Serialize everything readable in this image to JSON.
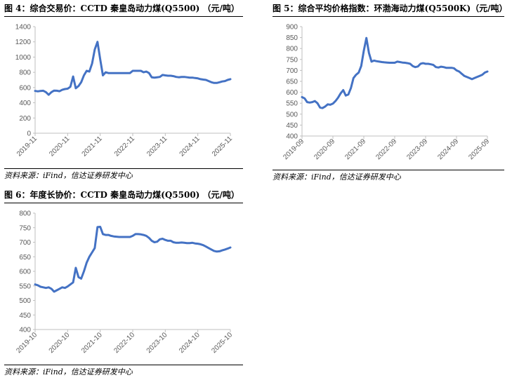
{
  "chart_data": [
    {
      "type": "line",
      "title": "图 4：综合交易价：CCTD 秦皇岛动力煤(Q5500)  （元/吨）",
      "source": "资料来源：iFind，信达证券研发中心",
      "x_tick_labels": [
        "2019-11",
        "2020-11",
        "2021-11",
        "2022-11",
        "2023-11",
        "2024-11",
        "2025-11"
      ],
      "ylim": [
        0,
        1400
      ],
      "y_ticks": [
        0,
        200,
        400,
        600,
        800,
        1000,
        1200,
        1400
      ],
      "xlim": [
        "2019-11",
        "2025-11"
      ],
      "grid": false,
      "series": [
        {
          "color": "#4472c4",
          "points": [
            [
              "2019-11",
              555
            ],
            [
              "2019-12",
              550
            ],
            [
              "2020-01",
              555
            ],
            [
              "2020-02",
              558
            ],
            [
              "2020-03",
              540
            ],
            [
              "2020-04",
              505
            ],
            [
              "2020-05",
              540
            ],
            [
              "2020-06",
              560
            ],
            [
              "2020-07",
              558
            ],
            [
              "2020-08",
              552
            ],
            [
              "2020-09",
              570
            ],
            [
              "2020-10",
              580
            ],
            [
              "2020-11",
              585
            ],
            [
              "2020-12",
              610
            ],
            [
              "2021-01",
              745
            ],
            [
              "2021-02",
              590
            ],
            [
              "2021-03",
              620
            ],
            [
              "2021-04",
              670
            ],
            [
              "2021-05",
              760
            ],
            [
              "2021-06",
              820
            ],
            [
              "2021-07",
              810
            ],
            [
              "2021-08",
              915
            ],
            [
              "2021-09",
              1100
            ],
            [
              "2021-10",
              1200
            ],
            [
              "2021-11",
              970
            ],
            [
              "2021-12",
              760
            ],
            [
              "2022-01",
              800
            ],
            [
              "2022-02",
              790
            ],
            [
              "2022-03",
              790
            ],
            [
              "2022-04",
              790
            ],
            [
              "2022-05",
              790
            ],
            [
              "2022-06",
              790
            ],
            [
              "2022-07",
              790
            ],
            [
              "2022-08",
              790
            ],
            [
              "2022-09",
              790
            ],
            [
              "2022-10",
              790
            ],
            [
              "2022-11",
              820
            ],
            [
              "2022-12",
              820
            ],
            [
              "2023-01",
              820
            ],
            [
              "2023-02",
              820
            ],
            [
              "2023-03",
              800
            ],
            [
              "2023-04",
              810
            ],
            [
              "2023-05",
              790
            ],
            [
              "2023-06",
              735
            ],
            [
              "2023-07",
              730
            ],
            [
              "2023-08",
              735
            ],
            [
              "2023-09",
              740
            ],
            [
              "2023-10",
              765
            ],
            [
              "2023-11",
              760
            ],
            [
              "2023-12",
              755
            ],
            [
              "2024-01",
              755
            ],
            [
              "2024-02",
              750
            ],
            [
              "2024-03",
              740
            ],
            [
              "2024-04",
              735
            ],
            [
              "2024-05",
              740
            ],
            [
              "2024-06",
              740
            ],
            [
              "2024-07",
              735
            ],
            [
              "2024-08",
              730
            ],
            [
              "2024-09",
              730
            ],
            [
              "2024-10",
              725
            ],
            [
              "2024-11",
              720
            ],
            [
              "2024-12",
              710
            ],
            [
              "2025-01",
              705
            ],
            [
              "2025-02",
              700
            ],
            [
              "2025-03",
              685
            ],
            [
              "2025-04",
              670
            ],
            [
              "2025-05",
              660
            ],
            [
              "2025-06",
              660
            ],
            [
              "2025-07",
              670
            ],
            [
              "2025-08",
              680
            ],
            [
              "2025-09",
              685
            ],
            [
              "2025-10",
              700
            ],
            [
              "2025-11",
              710
            ]
          ]
        }
      ]
    },
    {
      "type": "line",
      "title": "图 5：综合平均价格指数：环渤海动力煤(Q5500K)（元/吨）",
      "source": "资料来源：iFind，信达证券研发中心",
      "x_tick_labels": [
        "2019-09",
        "2020-09",
        "2021-09",
        "2022-09",
        "2023-09",
        "2024-09",
        "2025-09"
      ],
      "ylim": [
        400,
        900
      ],
      "y_ticks": [
        400,
        450,
        500,
        550,
        600,
        650,
        700,
        750,
        800,
        850,
        900
      ],
      "xlim": [
        "2019-09",
        "2025-09"
      ],
      "grid": false,
      "series": [
        {
          "color": "#4472c4",
          "points": [
            [
              "2019-09",
              578
            ],
            [
              "2019-10",
              572
            ],
            [
              "2019-11",
              555
            ],
            [
              "2019-12",
              553
            ],
            [
              "2020-01",
              555
            ],
            [
              "2020-02",
              560
            ],
            [
              "2020-03",
              550
            ],
            [
              "2020-04",
              530
            ],
            [
              "2020-05",
              528
            ],
            [
              "2020-06",
              535
            ],
            [
              "2020-07",
              545
            ],
            [
              "2020-08",
              543
            ],
            [
              "2020-09",
              548
            ],
            [
              "2020-10",
              560
            ],
            [
              "2020-11",
              575
            ],
            [
              "2020-12",
              595
            ],
            [
              "2021-01",
              610
            ],
            [
              "2021-02",
              585
            ],
            [
              "2021-03",
              590
            ],
            [
              "2021-04",
              620
            ],
            [
              "2021-05",
              665
            ],
            [
              "2021-06",
              680
            ],
            [
              "2021-07",
              690
            ],
            [
              "2021-08",
              720
            ],
            [
              "2021-09",
              790
            ],
            [
              "2021-10",
              848
            ],
            [
              "2021-11",
              780
            ],
            [
              "2021-12",
              740
            ],
            [
              "2022-01",
              745
            ],
            [
              "2022-02",
              742
            ],
            [
              "2022-03",
              740
            ],
            [
              "2022-04",
              738
            ],
            [
              "2022-05",
              737
            ],
            [
              "2022-06",
              736
            ],
            [
              "2022-07",
              735
            ],
            [
              "2022-08",
              735
            ],
            [
              "2022-09",
              735
            ],
            [
              "2022-10",
              740
            ],
            [
              "2022-11",
              738
            ],
            [
              "2022-12",
              736
            ],
            [
              "2023-01",
              735
            ],
            [
              "2023-02",
              733
            ],
            [
              "2023-03",
              730
            ],
            [
              "2023-04",
              720
            ],
            [
              "2023-05",
              715
            ],
            [
              "2023-06",
              718
            ],
            [
              "2023-07",
              730
            ],
            [
              "2023-08",
              733
            ],
            [
              "2023-09",
              730
            ],
            [
              "2023-10",
              730
            ],
            [
              "2023-11",
              728
            ],
            [
              "2023-12",
              725
            ],
            [
              "2024-01",
              715
            ],
            [
              "2024-02",
              713
            ],
            [
              "2024-03",
              717
            ],
            [
              "2024-04",
              715
            ],
            [
              "2024-05",
              712
            ],
            [
              "2024-06",
              712
            ],
            [
              "2024-07",
              712
            ],
            [
              "2024-08",
              710
            ],
            [
              "2024-09",
              700
            ],
            [
              "2024-10",
              695
            ],
            [
              "2024-11",
              685
            ],
            [
              "2024-12",
              675
            ],
            [
              "2025-01",
              670
            ],
            [
              "2025-02",
              665
            ],
            [
              "2025-03",
              660
            ],
            [
              "2025-04",
              665
            ],
            [
              "2025-05",
              670
            ],
            [
              "2025-06",
              675
            ],
            [
              "2025-07",
              680
            ],
            [
              "2025-08",
              690
            ],
            [
              "2025-09",
              695
            ]
          ]
        }
      ]
    },
    {
      "type": "line",
      "title": "图 6：年度长协价：CCTD 秦皇岛动力煤(Q5500)  （元/吨）",
      "source": "资料来源：iFind，信达证券研发中心",
      "x_tick_labels": [
        "2019-10",
        "2020-10",
        "2021-10",
        "2022-10",
        "2023-10",
        "2024-10",
        "2025-10"
      ],
      "ylim": [
        400,
        800
      ],
      "y_ticks": [
        400,
        450,
        500,
        550,
        600,
        650,
        700,
        750,
        800
      ],
      "xlim": [
        "2019-10",
        "2025-10"
      ],
      "grid": false,
      "series": [
        {
          "color": "#4472c4",
          "points": [
            [
              "2019-10",
              555
            ],
            [
              "2019-11",
              552
            ],
            [
              "2019-12",
              547
            ],
            [
              "2020-01",
              545
            ],
            [
              "2020-02",
              543
            ],
            [
              "2020-03",
              545
            ],
            [
              "2020-04",
              540
            ],
            [
              "2020-05",
              530
            ],
            [
              "2020-06",
              535
            ],
            [
              "2020-07",
              540
            ],
            [
              "2020-08",
              545
            ],
            [
              "2020-09",
              543
            ],
            [
              "2020-10",
              548
            ],
            [
              "2020-11",
              555
            ],
            [
              "2020-12",
              562
            ],
            [
              "2021-01",
              612
            ],
            [
              "2021-02",
              580
            ],
            [
              "2021-03",
              575
            ],
            [
              "2021-04",
              600
            ],
            [
              "2021-05",
              630
            ],
            [
              "2021-06",
              650
            ],
            [
              "2021-07",
              665
            ],
            [
              "2021-08",
              680
            ],
            [
              "2021-09",
              752
            ],
            [
              "2021-10",
              753
            ],
            [
              "2021-11",
              728
            ],
            [
              "2021-12",
              725
            ],
            [
              "2022-01",
              725
            ],
            [
              "2022-02",
              722
            ],
            [
              "2022-03",
              720
            ],
            [
              "2022-04",
              719
            ],
            [
              "2022-05",
              718
            ],
            [
              "2022-06",
              718
            ],
            [
              "2022-07",
              718
            ],
            [
              "2022-08",
              718
            ],
            [
              "2022-09",
              718
            ],
            [
              "2022-10",
              722
            ],
            [
              "2022-11",
              728
            ],
            [
              "2022-12",
              728
            ],
            [
              "2023-01",
              727
            ],
            [
              "2023-02",
              725
            ],
            [
              "2023-03",
              722
            ],
            [
              "2023-04",
              715
            ],
            [
              "2023-05",
              705
            ],
            [
              "2023-06",
              700
            ],
            [
              "2023-07",
              702
            ],
            [
              "2023-08",
              710
            ],
            [
              "2023-09",
              712
            ],
            [
              "2023-10",
              708
            ],
            [
              "2023-11",
              705
            ],
            [
              "2023-12",
              705
            ],
            [
              "2024-01",
              700
            ],
            [
              "2024-02",
              698
            ],
            [
              "2024-03",
              698
            ],
            [
              "2024-04",
              699
            ],
            [
              "2024-05",
              698
            ],
            [
              "2024-06",
              697
            ],
            [
              "2024-07",
              697
            ],
            [
              "2024-08",
              698
            ],
            [
              "2024-09",
              696
            ],
            [
              "2024-10",
              695
            ],
            [
              "2024-11",
              693
            ],
            [
              "2024-12",
              690
            ],
            [
              "2025-01",
              685
            ],
            [
              "2025-02",
              680
            ],
            [
              "2025-03",
              675
            ],
            [
              "2025-04",
              670
            ],
            [
              "2025-05",
              668
            ],
            [
              "2025-06",
              669
            ],
            [
              "2025-07",
              672
            ],
            [
              "2025-08",
              675
            ],
            [
              "2025-09",
              678
            ],
            [
              "2025-10",
              682
            ]
          ]
        }
      ]
    }
  ]
}
